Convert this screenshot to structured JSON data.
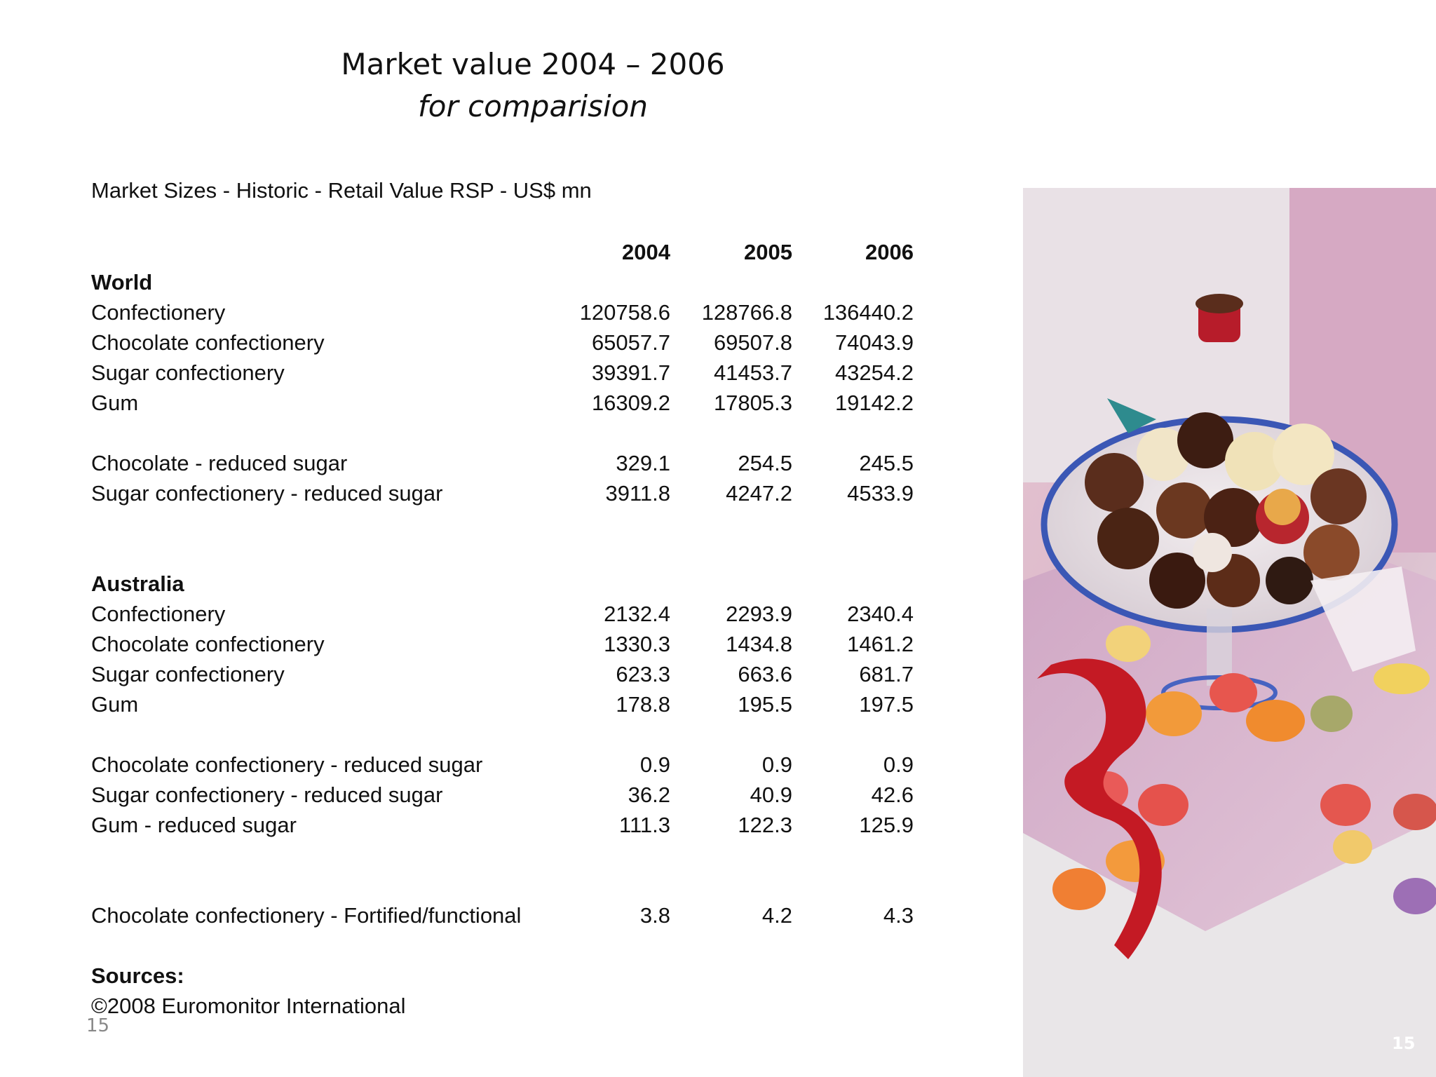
{
  "title": {
    "line1": "Market value 2004 – 2006",
    "line2": "for comparision"
  },
  "subtitle": "Market Sizes - Historic - Retail Value RSP - US$ mn",
  "table": {
    "header": [
      "2004",
      "2005",
      "2006"
    ],
    "rows": [
      {
        "label": "World",
        "bold": true,
        "values": [
          "",
          "",
          ""
        ]
      },
      {
        "label": "Confectionery",
        "values": [
          "120758.6",
          "128766.8",
          "136440.2"
        ]
      },
      {
        "label": "Chocolate confectionery",
        "values": [
          "65057.7",
          "69507.8",
          "74043.9"
        ]
      },
      {
        "label": "Sugar confectionery",
        "values": [
          "39391.7",
          "41453.7",
          "43254.2"
        ]
      },
      {
        "label": "Gum",
        "values": [
          "16309.2",
          "17805.3",
          "19142.2"
        ]
      },
      {
        "label": "",
        "values": [
          "",
          "",
          ""
        ]
      },
      {
        "label": "Chocolate - reduced sugar",
        "values": [
          "329.1",
          "254.5",
          "245.5"
        ]
      },
      {
        "label": "Sugar confectionery - reduced sugar",
        "values": [
          "3911.8",
          "4247.2",
          "4533.9"
        ]
      },
      {
        "label": "",
        "values": [
          "",
          "",
          ""
        ]
      },
      {
        "label": "",
        "values": [
          "",
          "",
          ""
        ]
      },
      {
        "label": "Australia",
        "bold": true,
        "values": [
          "",
          "",
          ""
        ]
      },
      {
        "label": "Confectionery",
        "values": [
          "2132.4",
          "2293.9",
          "2340.4"
        ]
      },
      {
        "label": "Chocolate confectionery",
        "values": [
          "1330.3",
          "1434.8",
          "1461.2"
        ]
      },
      {
        "label": "Sugar confectionery",
        "values": [
          "623.3",
          "663.6",
          "681.7"
        ]
      },
      {
        "label": "Gum",
        "values": [
          "178.8",
          "195.5",
          "197.5"
        ]
      },
      {
        "label": "",
        "values": [
          "",
          "",
          ""
        ]
      },
      {
        "label": "Chocolate confectionery - reduced sugar",
        "values": [
          "0.9",
          "0.9",
          "0.9"
        ]
      },
      {
        "label": "Sugar confectionery - reduced sugar",
        "values": [
          "36.2",
          "40.9",
          "42.6"
        ]
      },
      {
        "label": "Gum - reduced sugar",
        "values": [
          "111.3",
          "122.3",
          "125.9"
        ]
      },
      {
        "label": "",
        "values": [
          "",
          "",
          ""
        ]
      },
      {
        "label": "",
        "values": [
          "",
          "",
          ""
        ]
      },
      {
        "label": "Chocolate confectionery - Fortified/functional",
        "values": [
          "3.8",
          "4.2",
          "4.3"
        ]
      },
      {
        "label": "",
        "values": [
          "",
          "",
          ""
        ]
      },
      {
        "label": "Sources:",
        "bold": true,
        "values": [
          "",
          "",
          ""
        ]
      },
      {
        "label": "©2008 Euromonitor International",
        "values": [
          "",
          "",
          ""
        ]
      }
    ]
  },
  "page_number": "15",
  "page_number_corner": "15",
  "photo_icon": "confectionery-photo"
}
